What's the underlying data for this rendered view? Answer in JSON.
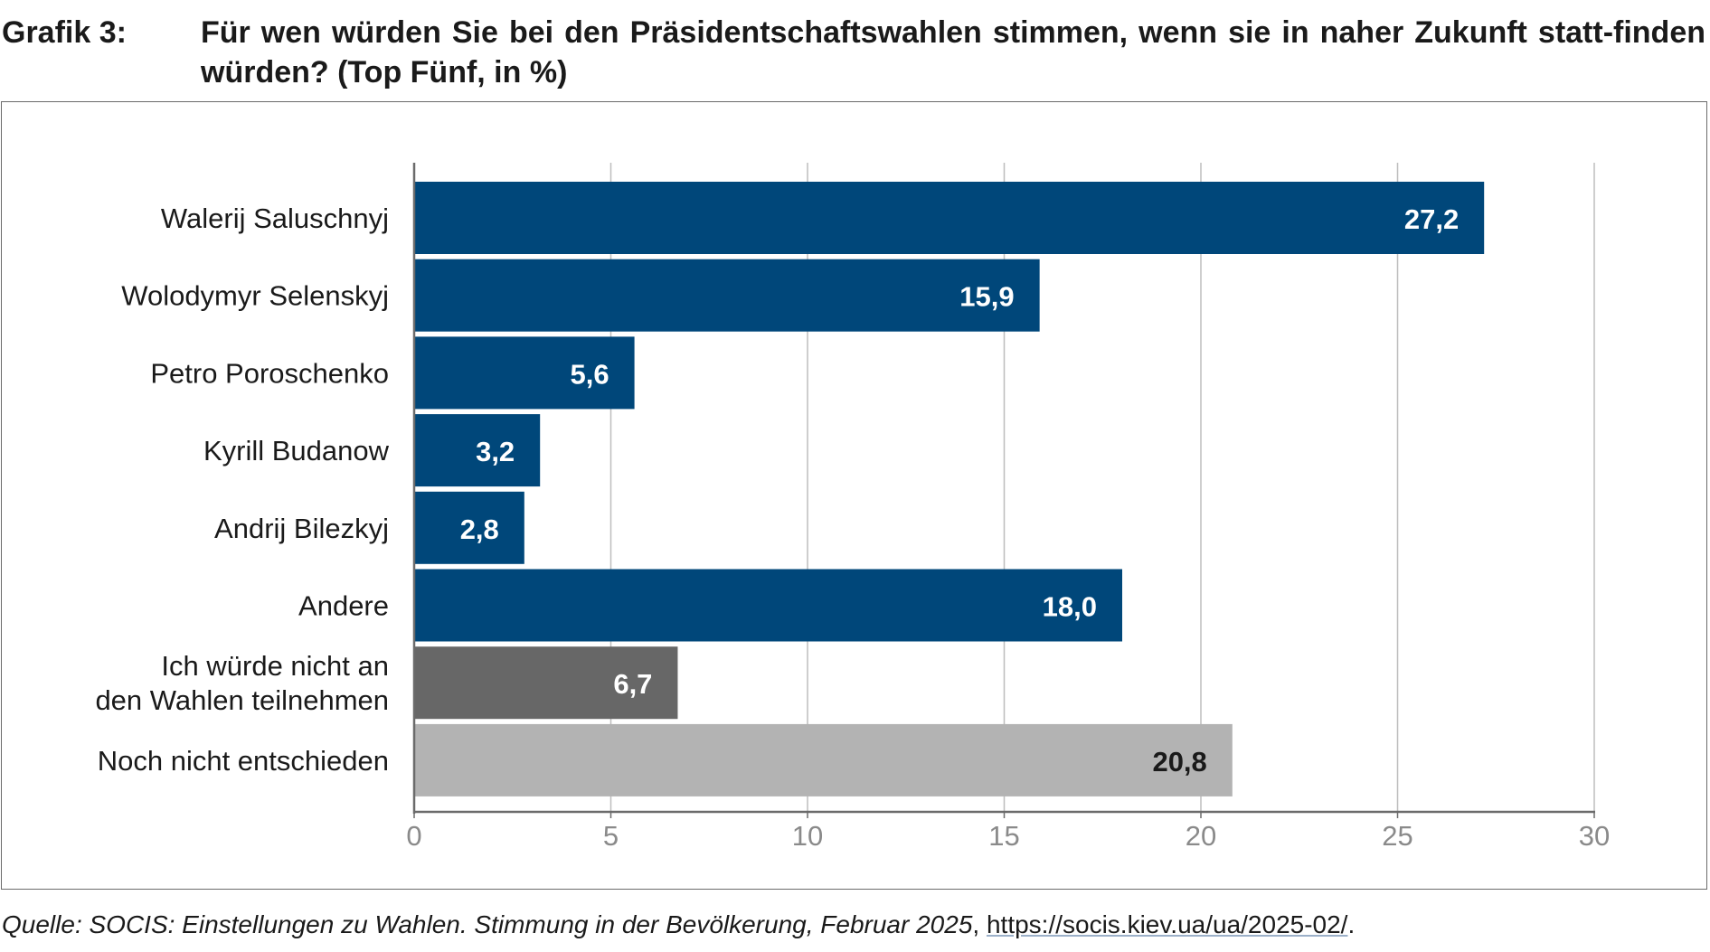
{
  "header": {
    "grafik_label": "Grafik 3:",
    "title": "Für wen würden Sie bei den Präsidentschaftswahlen stimmen, wenn sie in naher Zukunft statt-finden würden? (Top Fünf, in %)"
  },
  "colors": {
    "candidate": "#00477a",
    "abstain": "#676767",
    "undecided": "#b3b3b3",
    "axis": "#6b6b6b",
    "grid": "#bdbdbd",
    "tick_text": "#8a8a8a",
    "value_light": "#ffffff",
    "value_dark": "#1a1a1a"
  },
  "chart_data": {
    "type": "bar",
    "orientation": "horizontal",
    "title": "Für wen würden Sie bei den Präsidentschaftswahlen stimmen, wenn sie in naher Zukunft statt-finden würden? (Top Fünf, in %)",
    "xlabel": "",
    "ylabel": "",
    "xlim": [
      0,
      30
    ],
    "xticks": [
      0,
      5,
      10,
      15,
      20,
      25,
      30
    ],
    "xtick_labels": [
      "0",
      "5",
      "10",
      "15",
      "20",
      "25",
      "30"
    ],
    "grid": true,
    "categories": [
      "Walerij Saluschnyj",
      "Wolodymyr Selenskyj",
      "Petro Poroschenko",
      "Kyrill Budanow",
      "Andrij Bilezkyj",
      "Andere",
      "Ich würde nicht an den Wahlen teilnehmen",
      "Noch nicht entschieden"
    ],
    "category_lines": [
      [
        "Walerij Saluschnyj"
      ],
      [
        "Wolodymyr Selenskyj"
      ],
      [
        "Petro Poroschenko"
      ],
      [
        "Kyrill Budanow"
      ],
      [
        "Andrij Bilezkyj"
      ],
      [
        "Andere"
      ],
      [
        "Ich würde nicht an",
        "den Wahlen teilnehmen"
      ],
      [
        "Noch nicht entschieden"
      ]
    ],
    "values": [
      27.2,
      15.9,
      5.6,
      3.2,
      2.8,
      18.0,
      6.7,
      20.8
    ],
    "value_labels": [
      "27,2",
      "15,9",
      "5,6",
      "3,2",
      "2,8",
      "18,0",
      "6,7",
      "20,8"
    ],
    "bar_groups": [
      "candidate",
      "candidate",
      "candidate",
      "candidate",
      "candidate",
      "candidate",
      "abstain",
      "undecided"
    ]
  },
  "source": {
    "italic_text": "Quelle: SOCIS: Einstellungen zu Wahlen. Stimmung in der Bevölkerung, Februar 2025",
    "separator": ", ",
    "link_text": "https://socis.kiev.ua/ua/2025-02/",
    "end": "."
  }
}
